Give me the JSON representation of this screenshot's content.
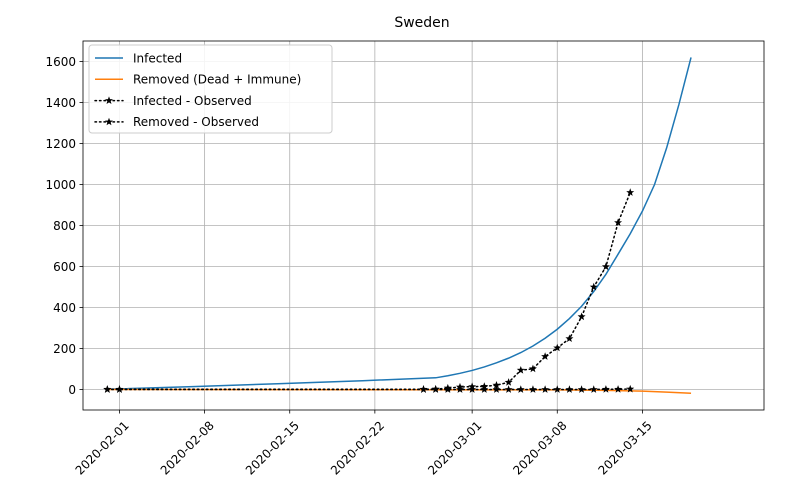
{
  "chart_data": {
    "type": "line",
    "title": "Sweden",
    "xlabel": "",
    "ylabel": "",
    "x_ticks": [
      "2020-02-01",
      "2020-02-08",
      "2020-02-15",
      "2020-02-22",
      "2020-03-01",
      "2020-03-08",
      "2020-03-15"
    ],
    "y_ticks": [
      0,
      200,
      400,
      600,
      800,
      1000,
      1200,
      1400,
      1600
    ],
    "ylim": [
      -100,
      1700
    ],
    "xlim": [
      "2020-01-29",
      "2020-03-25"
    ],
    "grid": true,
    "legend_position": "top-left",
    "series": [
      {
        "name": "Infected",
        "color": "#1f77b4",
        "style": "solid",
        "points": [
          [
            "2020-01-31",
            1
          ],
          [
            "2020-02-07",
            14
          ],
          [
            "2020-02-14",
            28
          ],
          [
            "2020-02-21",
            43
          ],
          [
            "2020-02-27",
            57
          ],
          [
            "2020-02-28",
            67
          ],
          [
            "2020-02-29",
            79
          ],
          [
            "2020-03-01",
            93
          ],
          [
            "2020-03-02",
            110
          ],
          [
            "2020-03-03",
            130
          ],
          [
            "2020-03-04",
            153
          ],
          [
            "2020-03-05",
            180
          ],
          [
            "2020-03-06",
            212
          ],
          [
            "2020-03-07",
            250
          ],
          [
            "2020-03-08",
            294
          ],
          [
            "2020-03-09",
            346
          ],
          [
            "2020-03-10",
            406
          ],
          [
            "2020-03-11",
            478
          ],
          [
            "2020-03-12",
            562
          ],
          [
            "2020-03-13",
            660
          ],
          [
            "2020-03-14",
            760
          ],
          [
            "2020-03-15",
            870
          ],
          [
            "2020-03-16",
            1000
          ],
          [
            "2020-03-17",
            1180
          ],
          [
            "2020-03-18",
            1390
          ],
          [
            "2020-03-19",
            1620
          ]
        ]
      },
      {
        "name": "Removed (Dead + Immune)",
        "color": "#ff7f0e",
        "style": "solid",
        "points": [
          [
            "2020-01-31",
            0
          ],
          [
            "2020-03-08",
            -2
          ],
          [
            "2020-03-12",
            -4
          ],
          [
            "2020-03-15",
            -8
          ],
          [
            "2020-03-17",
            -13
          ],
          [
            "2020-03-19",
            -18
          ]
        ]
      },
      {
        "name": "Infected - Observed",
        "color": "#000000",
        "style": "dotted",
        "marker": "star",
        "points": [
          [
            "2020-01-31",
            1
          ],
          [
            "2020-02-01",
            1
          ],
          [
            "2020-02-26",
            1
          ],
          [
            "2020-02-27",
            2
          ],
          [
            "2020-02-28",
            7
          ],
          [
            "2020-02-29",
            12
          ],
          [
            "2020-03-01",
            14
          ],
          [
            "2020-03-02",
            15
          ],
          [
            "2020-03-03",
            21
          ],
          [
            "2020-03-04",
            35
          ],
          [
            "2020-03-05",
            94
          ],
          [
            "2020-03-06",
            101
          ],
          [
            "2020-03-07",
            161
          ],
          [
            "2020-03-08",
            203
          ],
          [
            "2020-03-09",
            248
          ],
          [
            "2020-03-10",
            355
          ],
          [
            "2020-03-11",
            500
          ],
          [
            "2020-03-12",
            599
          ],
          [
            "2020-03-13",
            814
          ],
          [
            "2020-03-14",
            961
          ]
        ]
      },
      {
        "name": "Removed - Observed",
        "color": "#000000",
        "style": "dotted",
        "marker": "star",
        "points": [
          [
            "2020-01-31",
            0
          ],
          [
            "2020-02-01",
            0
          ],
          [
            "2020-02-26",
            0
          ],
          [
            "2020-02-27",
            0
          ],
          [
            "2020-02-28",
            0
          ],
          [
            "2020-02-29",
            0
          ],
          [
            "2020-03-01",
            0
          ],
          [
            "2020-03-02",
            0
          ],
          [
            "2020-03-03",
            0
          ],
          [
            "2020-03-04",
            0
          ],
          [
            "2020-03-05",
            0
          ],
          [
            "2020-03-06",
            0
          ],
          [
            "2020-03-07",
            0
          ],
          [
            "2020-03-08",
            0
          ],
          [
            "2020-03-09",
            0
          ],
          [
            "2020-03-10",
            0
          ],
          [
            "2020-03-11",
            0
          ],
          [
            "2020-03-12",
            1
          ],
          [
            "2020-03-13",
            1
          ],
          [
            "2020-03-14",
            2
          ]
        ]
      }
    ]
  }
}
